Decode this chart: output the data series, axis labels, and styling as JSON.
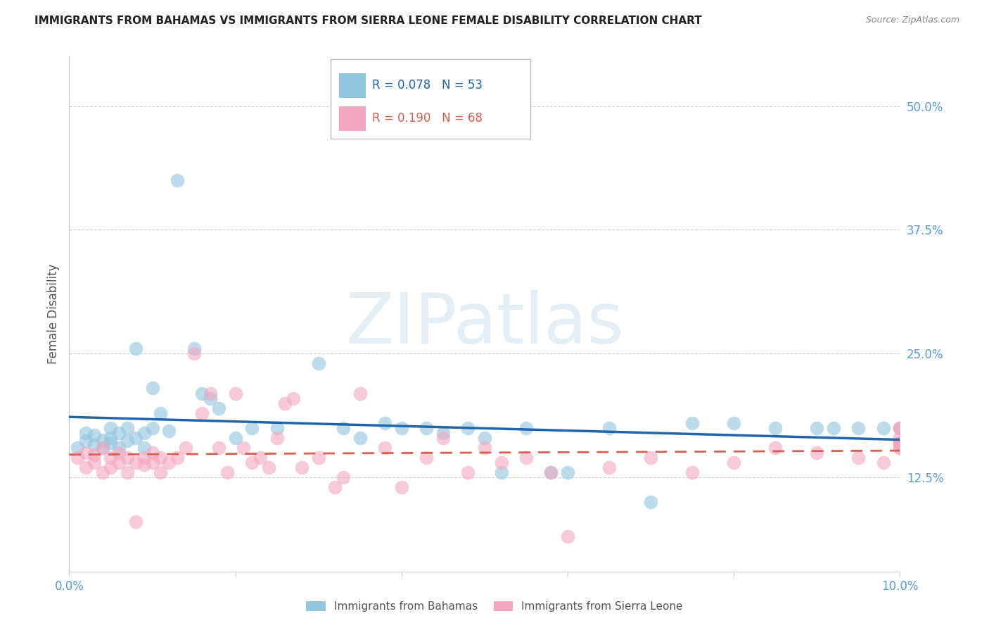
{
  "title": "IMMIGRANTS FROM BAHAMAS VS IMMIGRANTS FROM SIERRA LEONE FEMALE DISABILITY CORRELATION CHART",
  "source": "Source: ZipAtlas.com",
  "ylabel": "Female Disability",
  "ylabel_right_ticks": [
    "50.0%",
    "37.5%",
    "25.0%",
    "12.5%"
  ],
  "ylabel_right_values": [
    0.5,
    0.375,
    0.25,
    0.125
  ],
  "xlim": [
    0.0,
    0.1
  ],
  "ylim": [
    0.03,
    0.55
  ],
  "watermark": "ZIPatlas",
  "blue_color": "#92c5de",
  "pink_color": "#f4a6c0",
  "blue_line_color": "#2166ac",
  "pink_line_color": "#d6604d",
  "title_color": "#222222",
  "source_color": "#888888",
  "tick_label_color": "#5b9bd5",
  "axis_label_color": "#555555",
  "grid_color": "#d0d0d0",
  "background_color": "#ffffff",
  "legend_r1": "R = 0.078",
  "legend_n1": "N = 53",
  "legend_r2": "R = 0.190",
  "legend_n2": "N = 68",
  "legend_label1": "Immigrants from Bahamas",
  "legend_label2": "Immigrants from Sierra Leone",
  "bahamas_x": [
    0.001,
    0.002,
    0.002,
    0.003,
    0.003,
    0.004,
    0.004,
    0.005,
    0.005,
    0.005,
    0.006,
    0.006,
    0.007,
    0.007,
    0.008,
    0.008,
    0.009,
    0.009,
    0.01,
    0.01,
    0.011,
    0.012,
    0.013,
    0.015,
    0.016,
    0.017,
    0.018,
    0.02,
    0.022,
    0.025,
    0.03,
    0.033,
    0.035,
    0.038,
    0.04,
    0.043,
    0.045,
    0.048,
    0.05,
    0.052,
    0.055,
    0.058,
    0.06,
    0.065,
    0.07,
    0.075,
    0.08,
    0.085,
    0.09,
    0.092,
    0.095,
    0.098,
    0.1
  ],
  "bahamas_y": [
    0.155,
    0.162,
    0.17,
    0.158,
    0.168,
    0.163,
    0.155,
    0.175,
    0.16,
    0.165,
    0.17,
    0.155,
    0.175,
    0.162,
    0.165,
    0.255,
    0.17,
    0.155,
    0.215,
    0.175,
    0.19,
    0.172,
    0.425,
    0.255,
    0.21,
    0.205,
    0.195,
    0.165,
    0.175,
    0.175,
    0.24,
    0.175,
    0.165,
    0.18,
    0.175,
    0.175,
    0.17,
    0.175,
    0.165,
    0.13,
    0.175,
    0.13,
    0.13,
    0.175,
    0.1,
    0.18,
    0.18,
    0.175,
    0.175,
    0.175,
    0.175,
    0.175,
    0.175
  ],
  "sierra_x": [
    0.001,
    0.002,
    0.002,
    0.003,
    0.003,
    0.004,
    0.004,
    0.005,
    0.005,
    0.006,
    0.006,
    0.007,
    0.007,
    0.008,
    0.008,
    0.009,
    0.009,
    0.01,
    0.01,
    0.011,
    0.011,
    0.012,
    0.013,
    0.014,
    0.015,
    0.016,
    0.017,
    0.018,
    0.019,
    0.02,
    0.021,
    0.022,
    0.023,
    0.024,
    0.025,
    0.026,
    0.027,
    0.028,
    0.03,
    0.032,
    0.033,
    0.035,
    0.038,
    0.04,
    0.043,
    0.045,
    0.048,
    0.05,
    0.052,
    0.055,
    0.058,
    0.06,
    0.065,
    0.07,
    0.075,
    0.08,
    0.085,
    0.09,
    0.095,
    0.098,
    0.1,
    0.1,
    0.1,
    0.1,
    0.1,
    0.1,
    0.1,
    0.1
  ],
  "sierra_y": [
    0.145,
    0.15,
    0.135,
    0.148,
    0.14,
    0.155,
    0.13,
    0.145,
    0.135,
    0.15,
    0.14,
    0.145,
    0.13,
    0.14,
    0.08,
    0.145,
    0.138,
    0.15,
    0.14,
    0.145,
    0.13,
    0.14,
    0.145,
    0.155,
    0.25,
    0.19,
    0.21,
    0.155,
    0.13,
    0.21,
    0.155,
    0.14,
    0.145,
    0.135,
    0.165,
    0.2,
    0.205,
    0.135,
    0.145,
    0.115,
    0.125,
    0.21,
    0.155,
    0.115,
    0.145,
    0.165,
    0.13,
    0.155,
    0.14,
    0.145,
    0.13,
    0.065,
    0.135,
    0.145,
    0.13,
    0.14,
    0.155,
    0.15,
    0.145,
    0.14,
    0.16,
    0.155,
    0.165,
    0.155,
    0.16,
    0.16,
    0.175,
    0.175
  ]
}
